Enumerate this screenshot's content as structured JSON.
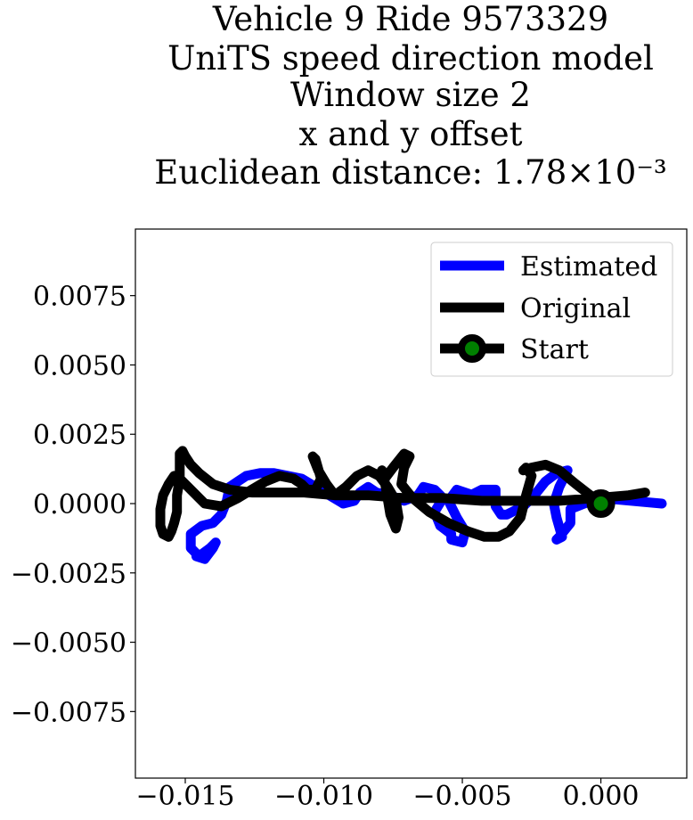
{
  "chart_data": {
    "type": "line",
    "title_lines": [
      "Vehicle 9 Ride 9573329",
      "UniTS speed direction model",
      "Window size 2",
      "x and y offset",
      "Euclidean distance: 1.78×10⁻³"
    ],
    "xlabel": "",
    "ylabel": "",
    "xlim": [
      -0.0168,
      0.0031
    ],
    "ylim": [
      -0.0099,
      0.0099
    ],
    "xticks": [
      -0.015,
      -0.01,
      -0.005,
      0.0
    ],
    "xtick_labels": [
      "−0.015",
      "−0.010",
      "−0.005",
      "0.000"
    ],
    "yticks": [
      0.0075,
      0.005,
      0.0025,
      0.0,
      -0.0025,
      -0.005,
      -0.0075
    ],
    "ytick_labels": [
      "0.0075",
      "0.0050",
      "0.0025",
      "0.0000",
      "−0.0025",
      "−0.0050",
      "−0.0075"
    ],
    "grid": false,
    "legend_position": "top-right",
    "series": [
      {
        "name": "Estimated",
        "color": "#0000ff",
        "x": [
          0.0022,
          0.0,
          -0.0006,
          -0.0011,
          -0.0011,
          -0.0015,
          -0.0016,
          -0.0014,
          -0.0016,
          -0.0017,
          -0.0015,
          -0.0012,
          -0.0016,
          -0.002,
          -0.0024,
          -0.0028,
          -0.0034,
          -0.0036,
          -0.0038,
          -0.0038,
          -0.0043,
          -0.0047,
          -0.0047,
          -0.0041,
          -0.0046,
          -0.0052,
          -0.0055,
          -0.0052,
          -0.0049,
          -0.005,
          -0.0054,
          -0.0054,
          -0.0058,
          -0.006,
          -0.0057,
          -0.006,
          -0.0064,
          -0.0066,
          -0.0071,
          -0.0076,
          -0.0081,
          -0.0084,
          -0.0087,
          -0.0089,
          -0.0093,
          -0.0098,
          -0.0103,
          -0.0108,
          -0.0113,
          -0.0118,
          -0.0123,
          -0.0128,
          -0.0131,
          -0.0134,
          -0.0135,
          -0.0137,
          -0.014,
          -0.0144,
          -0.0148,
          -0.0148,
          -0.0145,
          -0.0141,
          -0.0139,
          -0.014,
          -0.0143,
          -0.0146
        ],
        "y": [
          0.0,
          0.0002,
          0.0,
          -0.0002,
          -0.0007,
          -0.0012,
          -0.0013,
          -0.0012,
          -0.0005,
          0.0,
          0.0006,
          0.0012,
          0.0011,
          0.0008,
          0.0003,
          -0.0001,
          -0.0004,
          -0.0004,
          -0.0001,
          0.0005,
          0.0005,
          0.0003,
          0.0002,
          0.0002,
          0.0003,
          0.0005,
          0.0001,
          -0.0005,
          -0.001,
          -0.0014,
          -0.0013,
          -0.0011,
          -0.0008,
          -0.0003,
          0.0002,
          0.0005,
          0.0006,
          0.0003,
          0.0001,
          0.0003,
          0.0004,
          0.0006,
          0.0004,
          0.0001,
          0.0,
          0.0003,
          0.0006,
          0.0009,
          0.001,
          0.0011,
          0.0011,
          0.001,
          0.0008,
          0.0006,
          0.0001,
          -0.0004,
          -0.0007,
          -0.0008,
          -0.0011,
          -0.0016,
          -0.0019,
          -0.0016,
          -0.0014,
          -0.0016,
          -0.002,
          -0.0019
        ]
      },
      {
        "name": "Original",
        "color": "#000000",
        "x": [
          0.0,
          -0.0009,
          -0.0015,
          -0.002,
          -0.0025,
          -0.0028,
          -0.0027,
          -0.0025,
          -0.0027,
          -0.0029,
          -0.0033,
          -0.0037,
          -0.0042,
          -0.0048,
          -0.0055,
          -0.0062,
          -0.0068,
          -0.0072,
          -0.0071,
          -0.0069,
          -0.0071,
          -0.0075,
          -0.0078,
          -0.0079,
          -0.0078,
          -0.0077,
          -0.0076,
          -0.0074,
          -0.0073,
          -0.0074,
          -0.0077,
          -0.008,
          -0.0084,
          -0.0088,
          -0.0092,
          -0.0096,
          -0.0099,
          -0.0102,
          -0.0104,
          -0.0103,
          -0.0101,
          -0.0103,
          -0.0106,
          -0.0108,
          -0.0111,
          -0.0116,
          -0.0121,
          -0.0126,
          -0.0131,
          -0.0137,
          -0.0143,
          -0.0148,
          -0.0152,
          -0.0154,
          -0.0156,
          -0.0158,
          -0.0159,
          -0.0159,
          -0.0158,
          -0.0156,
          -0.0155,
          -0.0154,
          -0.0153,
          -0.0153,
          -0.0152,
          -0.0152,
          -0.0152,
          -0.0151,
          -0.015,
          -0.0148,
          -0.0145,
          -0.014,
          -0.0134,
          -0.0126,
          -0.0117,
          -0.0107,
          -0.0096,
          -0.0084,
          -0.0071,
          -0.0057,
          -0.0043,
          -0.0029,
          -0.0015,
          -0.0002,
          0.001,
          0.0016
        ],
        "y": [
          0.0,
          0.0007,
          0.0012,
          0.0014,
          0.0013,
          0.0012,
          0.0013,
          0.001,
          0.0003,
          -0.0005,
          -0.001,
          -0.0012,
          -0.0012,
          -0.001,
          -0.0007,
          -0.0003,
          0.0002,
          0.0007,
          0.0013,
          0.0017,
          0.0018,
          0.0013,
          0.0009,
          0.0012,
          0.0008,
          0.0002,
          -0.0004,
          -0.0009,
          -0.0005,
          0.0001,
          0.0006,
          0.001,
          0.0012,
          0.001,
          0.0006,
          0.0003,
          0.0007,
          0.0012,
          0.0017,
          0.0016,
          0.0009,
          0.0005,
          0.0005,
          0.0007,
          0.0009,
          0.001,
          0.0008,
          0.0005,
          0.0002,
          -0.0001,
          0.0,
          0.0005,
          0.0009,
          0.001,
          0.0007,
          0.0003,
          -0.0002,
          -0.0008,
          -0.0011,
          -0.0012,
          -0.001,
          -0.0007,
          -0.0003,
          0.0003,
          0.0009,
          0.0014,
          0.0018,
          0.0019,
          0.0017,
          0.0014,
          0.0011,
          0.0007,
          0.0005,
          0.0004,
          0.0004,
          0.0004,
          0.0003,
          0.0003,
          0.0002,
          0.0002,
          0.0001,
          0.0001,
          0.0001,
          0.0002,
          0.0003,
          0.0004
        ]
      }
    ],
    "start_marker": {
      "name": "Start",
      "x": 0.0,
      "y": 0.0,
      "edge_color": "#000000",
      "face_color": "#008000"
    }
  }
}
